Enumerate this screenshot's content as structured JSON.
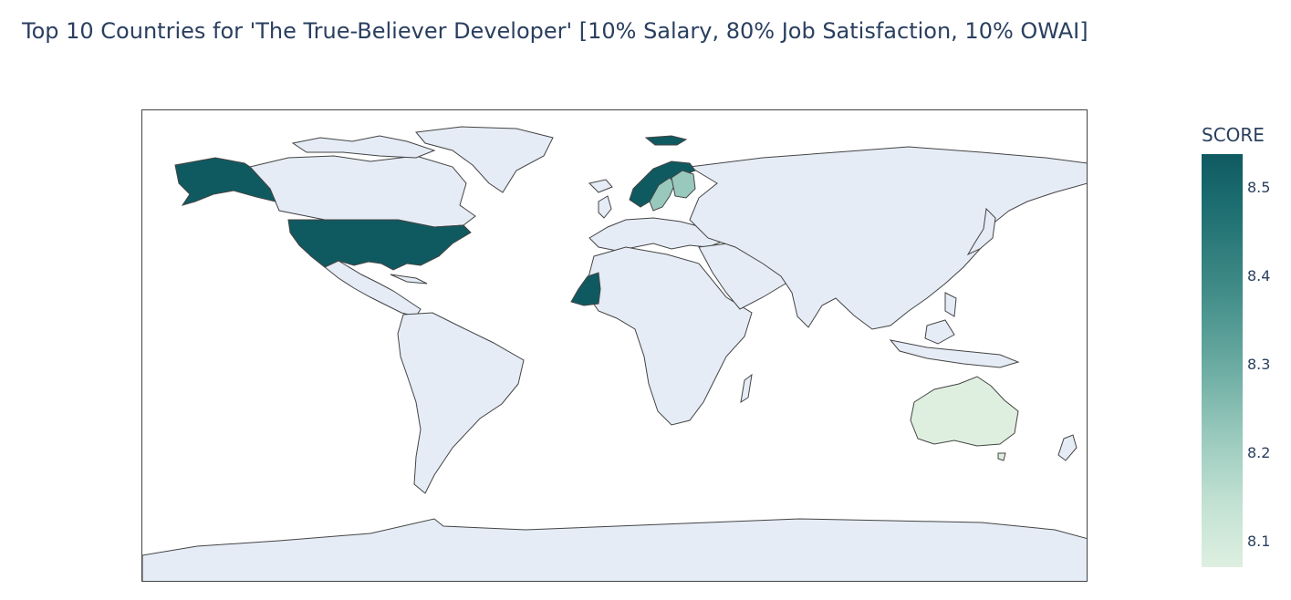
{
  "title": "Top 10 Countries for 'The True-Believer Developer' [10% Salary, 80% Job Satisfaction, 10% OWAI]",
  "colorbar": {
    "title": "SCORE",
    "ticks": [
      "8.5",
      "8.4",
      "8.3",
      "8.2",
      "8.1"
    ],
    "tick_values": [
      8.5,
      8.4,
      8.3,
      8.2,
      8.1
    ],
    "range": [
      8.07,
      8.54
    ],
    "colors": [
      "#0f5a61",
      "#3b8784",
      "#98c9bc",
      "#deefe0"
    ]
  },
  "map": {
    "projection": "equirectangular",
    "land_color": "#e5ecf6",
    "border_color": "#444444",
    "highlighted": [
      {
        "region": "United States",
        "color": "#0f5a61"
      },
      {
        "region": "Norway",
        "color": "#0f5a61"
      },
      {
        "region": "Mauritania",
        "color": "#0f5a61"
      },
      {
        "region": "Finland",
        "color": "#98c9bc"
      },
      {
        "region": "Sweden",
        "color": "#98c9bc"
      },
      {
        "region": "Australia",
        "color": "#deefe0"
      }
    ]
  }
}
